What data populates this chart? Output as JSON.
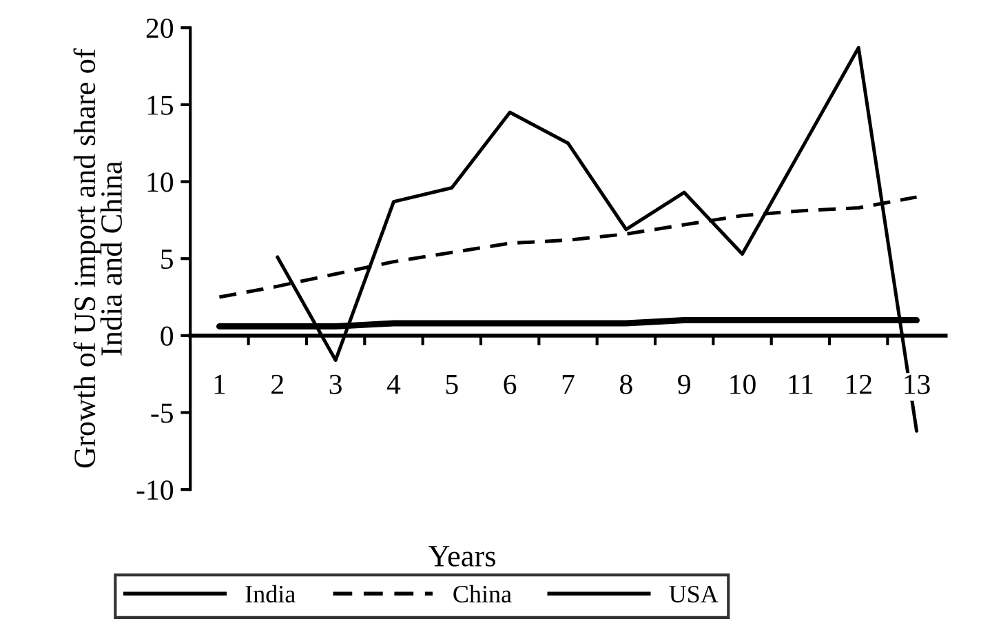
{
  "chart_data": {
    "type": "line",
    "xlabel": "Years",
    "ylabel": "Growth of US import and share of\nIndia and China",
    "categories": [
      "1",
      "2",
      "3",
      "4",
      "5",
      "6",
      "7",
      "8",
      "9",
      "10",
      "11",
      "12",
      "13"
    ],
    "series": [
      {
        "name": "India",
        "color": "#000000",
        "line_style": "solid",
        "values": [
          0.6,
          0.6,
          0.6,
          0.8,
          0.8,
          0.8,
          0.8,
          0.8,
          1.0,
          1.0,
          1.0,
          1.0,
          1.0
        ]
      },
      {
        "name": "China",
        "color": "#000000",
        "line_style": "dashed",
        "values": [
          2.5,
          3.2,
          4.0,
          4.8,
          5.4,
          6.0,
          6.2,
          6.6,
          7.2,
          7.8,
          8.1,
          8.3,
          9.0
        ]
      },
      {
        "name": "USA",
        "color": "#000000",
        "line_style": "solid",
        "values": [
          null,
          5.1,
          -1.6,
          8.7,
          9.6,
          14.5,
          12.5,
          6.9,
          9.3,
          5.3,
          12.0,
          18.7,
          -6.2
        ]
      }
    ],
    "ylim": [
      -10,
      20
    ],
    "yticks": [
      -10,
      -5,
      0,
      5,
      10,
      15,
      20
    ],
    "grid": false,
    "legend": "bottom",
    "marker": "none"
  }
}
